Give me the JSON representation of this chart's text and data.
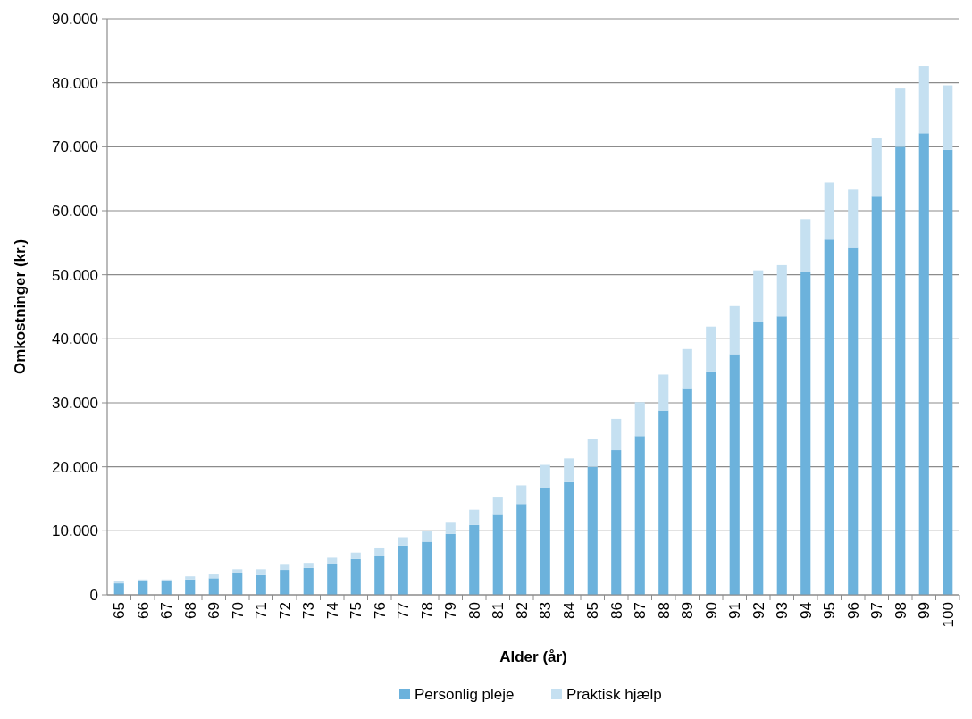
{
  "chart_data": {
    "type": "bar",
    "stacked": true,
    "xlabel": "Alder (år)",
    "ylabel": "Omkostninger (kr.)",
    "categories": [
      "65",
      "66",
      "67",
      "68",
      "69",
      "70",
      "71",
      "72",
      "73",
      "74",
      "75",
      "76",
      "77",
      "78",
      "79",
      "80",
      "81",
      "82",
      "83",
      "84",
      "85",
      "86",
      "87",
      "88",
      "89",
      "90",
      "91",
      "92",
      "93",
      "94",
      "95",
      "96",
      "97",
      "98",
      "99",
      "100"
    ],
    "series": [
      {
        "name": "Personlig pleje",
        "color": "#6cb2dc",
        "values": [
          1800,
          2100,
          2100,
          2400,
          2600,
          3400,
          3100,
          3900,
          4200,
          4800,
          5600,
          6100,
          7700,
          8300,
          9500,
          10900,
          12500,
          14200,
          16800,
          17600,
          20000,
          22600,
          24800,
          28800,
          32300,
          34900,
          37600,
          42700,
          43500,
          50400,
          55500,
          54200,
          62200,
          70000,
          72100,
          69500
        ]
      },
      {
        "name": "Praktisk hjælp",
        "color": "#c5e0f1",
        "values": [
          300,
          300,
          300,
          500,
          600,
          600,
          900,
          800,
          800,
          1000,
          1000,
          1300,
          1300,
          1600,
          1900,
          2400,
          2700,
          2900,
          3500,
          3700,
          4300,
          4900,
          5300,
          5600,
          6100,
          7000,
          7500,
          8000,
          8000,
          8300,
          8900,
          9100,
          9100,
          9100,
          10500,
          10100
        ]
      }
    ],
    "ylim": [
      0,
      90000
    ],
    "yticks": [
      {
        "value": 0,
        "label": "0"
      },
      {
        "value": 10000,
        "label": "10.000"
      },
      {
        "value": 20000,
        "label": "20.000"
      },
      {
        "value": 30000,
        "label": "30.000"
      },
      {
        "value": 40000,
        "label": "40.000"
      },
      {
        "value": 50000,
        "label": "50.000"
      },
      {
        "value": 60000,
        "label": "60.000"
      },
      {
        "value": 70000,
        "label": "70.000"
      },
      {
        "value": 80000,
        "label": "80.000"
      },
      {
        "value": 90000,
        "label": "90.000"
      }
    ],
    "grid": "y",
    "legend": "bottom"
  }
}
